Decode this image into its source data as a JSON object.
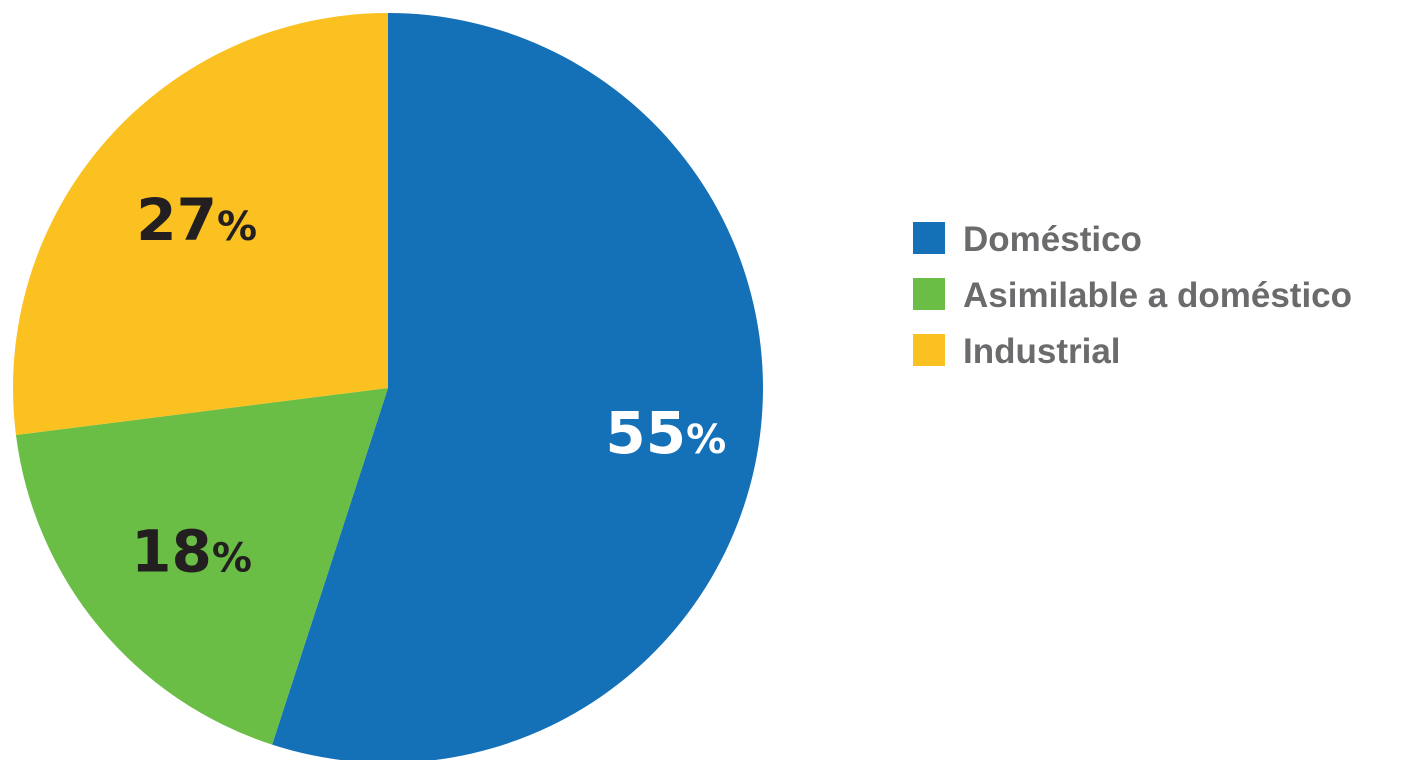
{
  "chart_data": {
    "type": "pie",
    "title": "",
    "legend_position": "right",
    "slices": [
      {
        "label": "Doméstico",
        "value": 55,
        "display": "55",
        "unit": "%",
        "color": "#1471b8",
        "label_color": "#ffffff"
      },
      {
        "label": "Asimilable a doméstico",
        "value": 18,
        "display": "18",
        "unit": "%",
        "color": "#6abd45",
        "label_color": "#231f20"
      },
      {
        "label": "Industrial",
        "value": 27,
        "display": "27",
        "unit": "%",
        "color": "#fbc120",
        "label_color": "#231f20"
      }
    ]
  }
}
